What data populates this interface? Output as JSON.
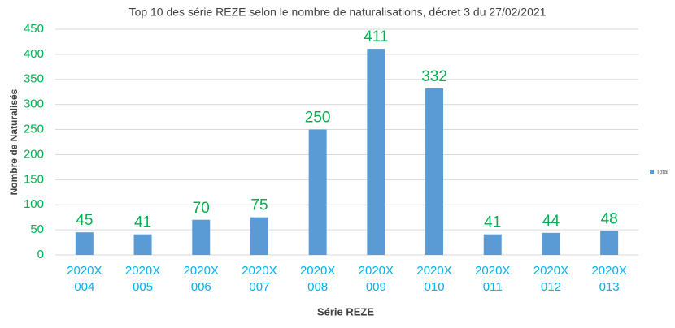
{
  "chart_data": {
    "type": "bar",
    "title": "Top 10 des série REZE selon le nombre de naturalisations, décret 3 du 27/02/2021",
    "x_label": "Série REZE",
    "y_label": "Nombre de Naturalisés",
    "categories": [
      "2020X 004",
      "2020X 005",
      "2020X 006",
      "2020X 007",
      "2020X 008",
      "2020X 009",
      "2020X 010",
      "2020X 011",
      "2020X 012",
      "2020X 013"
    ],
    "series": [
      {
        "name": "Total",
        "color": "#5b9bd5",
        "values": [
          45,
          41,
          70,
          75,
          250,
          411,
          332,
          41,
          44,
          48
        ]
      }
    ],
    "ylim": [
      0,
      450
    ],
    "yticks": [
      0,
      50,
      100,
      150,
      200,
      250,
      300,
      350,
      400,
      450
    ],
    "grid": true,
    "legend": "right"
  }
}
